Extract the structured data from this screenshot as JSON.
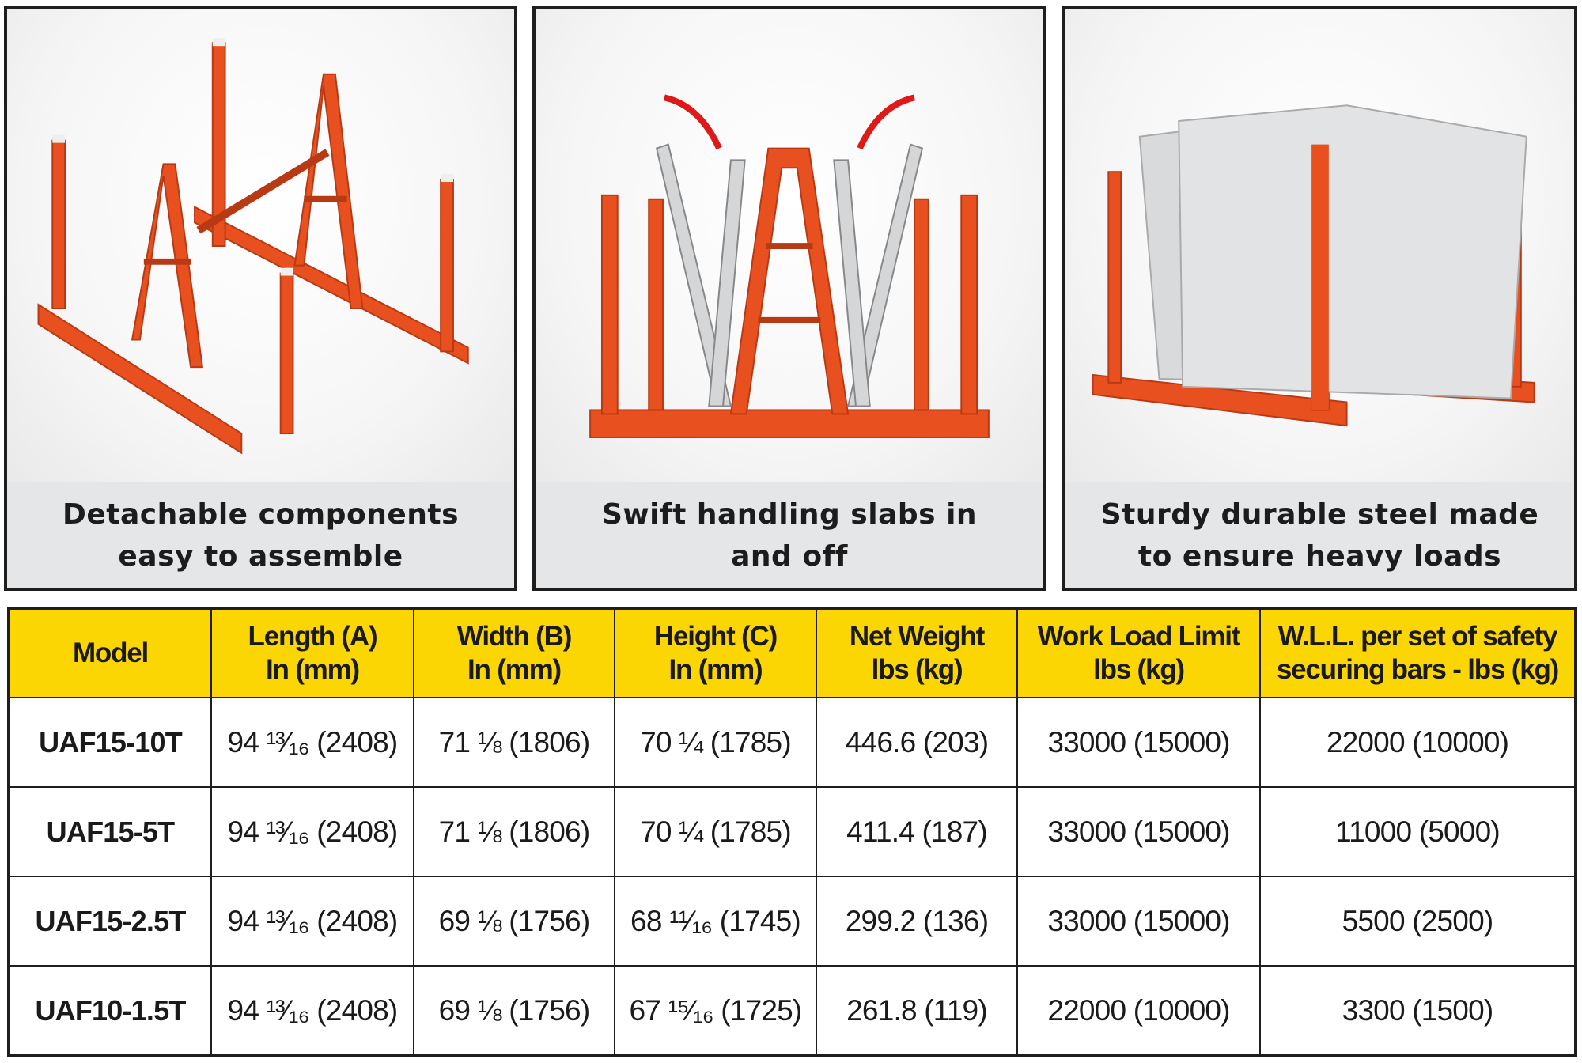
{
  "panels": [
    {
      "caption": [
        "Detachable components",
        "easy to assemble"
      ]
    },
    {
      "caption": [
        "Swift handling slabs in",
        "and off"
      ]
    },
    {
      "caption": [
        "Sturdy durable steel made",
        "to ensure heavy loads"
      ]
    }
  ],
  "colors": {
    "rack_orange": "#e8501f",
    "header_yellow": "#fcd603",
    "caption_gray": "#e5e6e8"
  },
  "table": {
    "headers": [
      [
        "Model"
      ],
      [
        "Length (A)",
        "In (mm)"
      ],
      [
        "Width (B)",
        "In (mm)"
      ],
      [
        "Height (C)",
        "In (mm)"
      ],
      [
        "Net Weight",
        "lbs (kg)"
      ],
      [
        "Work Load Limit",
        "lbs (kg)"
      ],
      [
        "W.L.L. per set of safety",
        "securing bars - lbs (kg)"
      ]
    ],
    "rows": [
      [
        "UAF15-10T",
        "94 ¹³⁄₁₆ (2408)",
        "71 ⅛ (1806)",
        "70 ¼ (1785)",
        "446.6 (203)",
        "33000 (15000)",
        "22000 (10000)"
      ],
      [
        "UAF15-5T",
        "94 ¹³⁄₁₆ (2408)",
        "71 ⅛ (1806)",
        "70 ¼ (1785)",
        "411.4 (187)",
        "33000 (15000)",
        "11000 (5000)"
      ],
      [
        "UAF15-2.5T",
        "94 ¹³⁄₁₆ (2408)",
        "69 ⅛ (1756)",
        "68 ¹¹⁄₁₆ (1745)",
        "299.2 (136)",
        "33000 (15000)",
        "5500 (2500)"
      ],
      [
        "UAF10-1.5T",
        "94 ¹³⁄₁₆ (2408)",
        "69 ⅛ (1756)",
        "67 ¹⁵⁄₁₆ (1725)",
        "261.8 (119)",
        "22000 (10000)",
        "3300 (1500)"
      ]
    ]
  }
}
